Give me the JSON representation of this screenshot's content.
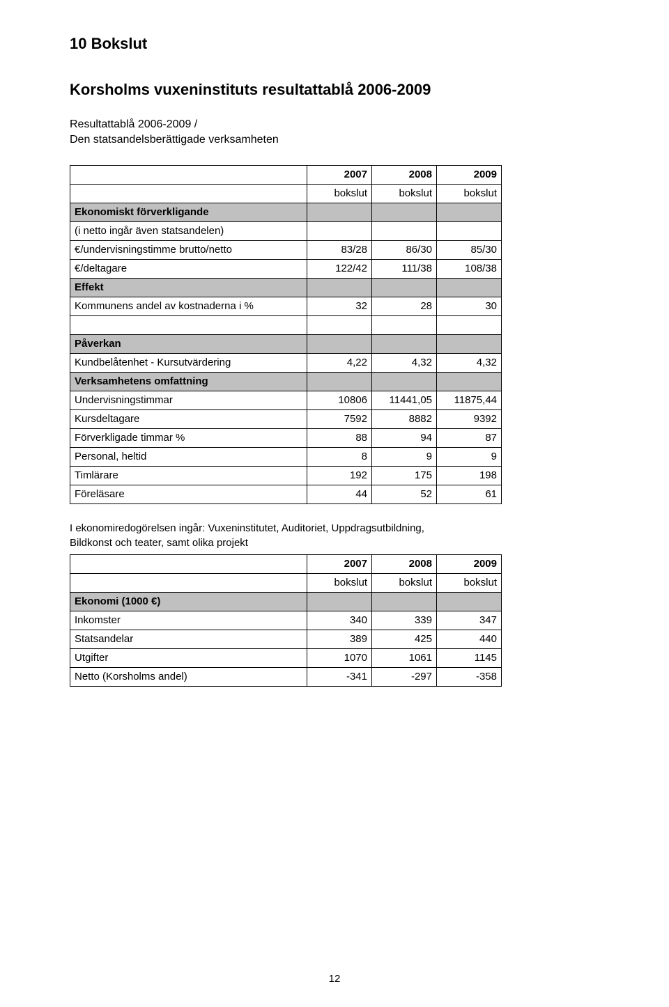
{
  "page_number": "12",
  "section_number": "10  Bokslut",
  "title": "Korsholms vuxeninstituts resultattablå 2006-2009",
  "subtitle_line1": "Resultattablå 2006-2009 /",
  "subtitle_line2": "Den statsandelsberättigade verksamheten",
  "colors": {
    "header_bg": "#c0c0c0",
    "border": "#000000",
    "text": "#000000",
    "background": "#ffffff"
  },
  "table1": {
    "year_row": [
      "",
      "2007",
      "2008",
      "2009"
    ],
    "sub_row": [
      "",
      "bokslut",
      "bokslut",
      "bokslut"
    ],
    "rows": [
      {
        "hdr": true,
        "cells": [
          "Ekonomiskt förverkligande",
          "",
          "",
          ""
        ]
      },
      {
        "hdr": false,
        "cells": [
          " (i netto ingår även statsandelen)",
          "",
          "",
          ""
        ]
      },
      {
        "hdr": false,
        "cells": [
          "€/undervisningstimme brutto/netto",
          "83/28",
          "86/30",
          "85/30"
        ]
      },
      {
        "hdr": false,
        "cells": [
          "€/deltagare",
          "122/42",
          "111/38",
          "108/38"
        ]
      },
      {
        "hdr": true,
        "cells": [
          "Effekt",
          "",
          "",
          ""
        ]
      },
      {
        "hdr": false,
        "cells": [
          "Kommunens andel av kostnaderna i %",
          "32",
          "28",
          "30"
        ]
      },
      {
        "hdr": false,
        "cells": [
          "",
          "",
          "",
          ""
        ]
      },
      {
        "hdr": true,
        "cells": [
          "Påverkan",
          "",
          "",
          ""
        ]
      },
      {
        "hdr": false,
        "cells": [
          "Kundbelåtenhet - Kursutvärdering",
          "4,22",
          "4,32",
          "4,32"
        ]
      },
      {
        "hdr": true,
        "cells": [
          "Verksamhetens omfattning",
          "",
          "",
          ""
        ]
      },
      {
        "hdr": false,
        "cells": [
          "Undervisningstimmar",
          "10806",
          "11441,05",
          "11875,44"
        ]
      },
      {
        "hdr": false,
        "cells": [
          "Kursdeltagare",
          "7592",
          "8882",
          "9392"
        ]
      },
      {
        "hdr": false,
        "cells": [
          "Förverkligade timmar %",
          "88",
          "94",
          "87"
        ]
      },
      {
        "hdr": false,
        "cells": [
          "Personal, heltid",
          "8",
          "9",
          "9"
        ]
      },
      {
        "hdr": false,
        "cells": [
          "Timlärare",
          "192",
          "175",
          "198"
        ]
      },
      {
        "hdr": false,
        "cells": [
          "Föreläsare",
          "44",
          "52",
          "61"
        ]
      }
    ]
  },
  "note_line1": "I ekonomiredogörelsen ingår: Vuxeninstitutet, Auditoriet, Uppdragsutbildning,",
  "note_line2": "Bildkonst och teater, samt olika projekt",
  "table2": {
    "year_row": [
      "",
      "2007",
      "2008",
      "2009"
    ],
    "sub_row": [
      "",
      "bokslut",
      "bokslut",
      "bokslut"
    ],
    "rows": [
      {
        "hdr": true,
        "cells": [
          "Ekonomi  (1000 €)",
          "",
          "",
          ""
        ]
      },
      {
        "hdr": false,
        "cells": [
          "Inkomster",
          "340",
          "339",
          "347"
        ]
      },
      {
        "hdr": false,
        "cells": [
          "Statsandelar",
          "389",
          "425",
          "440"
        ]
      },
      {
        "hdr": false,
        "cells": [
          "Utgifter",
          "1070",
          "1061",
          "1145"
        ]
      },
      {
        "hdr": false,
        "cells": [
          "Netto (Korsholms andel)",
          "-341",
          "-297",
          "-358"
        ]
      }
    ]
  }
}
